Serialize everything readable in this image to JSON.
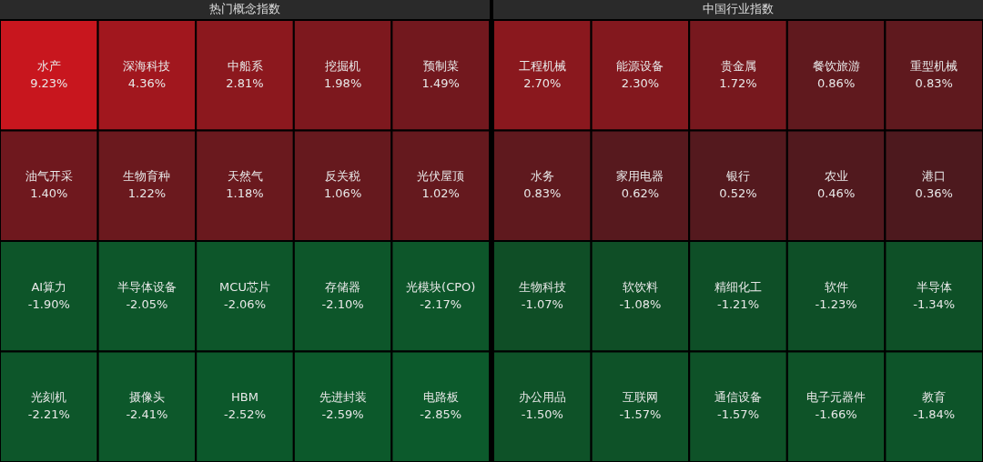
{
  "chart_data": [
    {
      "type": "other",
      "title": "热门概念指数",
      "categories": [
        "水产",
        "深海科技",
        "中船系",
        "挖掘机",
        "预制菜",
        "油气开采",
        "生物育种",
        "天然气",
        "反关税",
        "光伏屋顶",
        "AI算力",
        "半导体设备",
        "MCU芯片",
        "存储器",
        "光模块(CPO)",
        "光刻机",
        "摄像头",
        "HBM",
        "先进封装",
        "电路板"
      ],
      "values": [
        9.23,
        4.36,
        2.81,
        1.98,
        1.49,
        1.4,
        1.22,
        1.18,
        1.06,
        1.02,
        -1.9,
        -2.05,
        -2.06,
        -2.1,
        -2.17,
        -2.21,
        -2.41,
        -2.52,
        -2.59,
        -2.85
      ],
      "value_labels": [
        "9.23%",
        "4.36%",
        "2.81%",
        "1.98%",
        "1.49%",
        "1.40%",
        "1.22%",
        "1.18%",
        "1.06%",
        "1.02%",
        "-1.90%",
        "-2.05%",
        "-2.06%",
        "-2.10%",
        "-2.17%",
        "-2.21%",
        "-2.41%",
        "-2.52%",
        "-2.59%",
        "-2.85%"
      ]
    },
    {
      "type": "other",
      "title": "中国行业指数",
      "categories": [
        "工程机械",
        "能源设备",
        "贵金属",
        "餐饮旅游",
        "重型机械",
        "水务",
        "家用电器",
        "银行",
        "农业",
        "港口",
        "生物科技",
        "软饮料",
        "精细化工",
        "软件",
        "半导体",
        "办公用品",
        "互联网",
        "通信设备",
        "电子元器件",
        "教育"
      ],
      "values": [
        2.7,
        2.3,
        1.72,
        0.86,
        0.83,
        0.83,
        0.62,
        0.52,
        0.46,
        0.36,
        -1.07,
        -1.08,
        -1.21,
        -1.23,
        -1.34,
        -1.5,
        -1.57,
        -1.57,
        -1.66,
        -1.84
      ],
      "value_labels": [
        "2.70%",
        "2.30%",
        "1.72%",
        "0.86%",
        "0.83%",
        "0.83%",
        "0.62%",
        "0.52%",
        "0.46%",
        "0.36%",
        "-1.07%",
        "-1.08%",
        "-1.21%",
        "-1.23%",
        "-1.34%",
        "-1.50%",
        "-1.57%",
        "-1.57%",
        "-1.66%",
        "-1.84%"
      ]
    }
  ]
}
